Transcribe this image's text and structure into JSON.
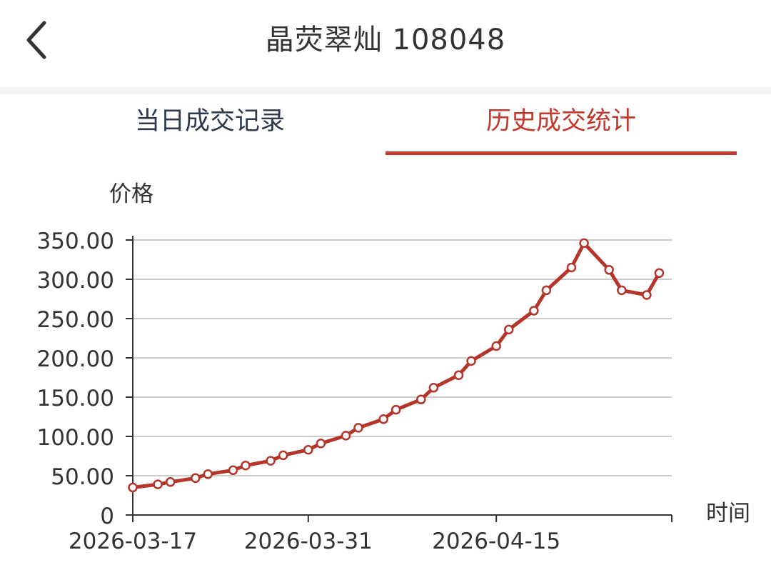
{
  "header": {
    "title": "晶荧翠灿 108048"
  },
  "tabs": [
    {
      "label": "当日成交记录",
      "active": false
    },
    {
      "label": "历史成交统计",
      "active": true
    }
  ],
  "colors": {
    "accent": "#c2392d",
    "line": "#b5352b",
    "grid": "#cccccc",
    "text": "#333333",
    "inactive_tab": "#2c3a4b"
  },
  "icons": {
    "back": "chevron-left-icon"
  },
  "chart_data": {
    "type": "line",
    "ylabel": "价格",
    "xlabel": "时间",
    "ylim": [
      0,
      350
    ],
    "yticks": [
      0,
      50,
      100,
      150,
      200,
      250,
      300,
      350
    ],
    "ytick_labels": [
      "0",
      "50.00",
      "100.00",
      "150.00",
      "200.00",
      "250.00",
      "300.00",
      "350.00"
    ],
    "xlim": [
      "2026-03-17",
      "2026-04-29"
    ],
    "xticks": [
      "2026-03-17",
      "2026-03-31",
      "2026-04-15"
    ],
    "grid": true,
    "series": [
      {
        "x": [
          "2026-03-17",
          "2026-03-19",
          "2026-03-20",
          "2026-03-22",
          "2026-03-23",
          "2026-03-25",
          "2026-03-26",
          "2026-03-28",
          "2026-03-29",
          "2026-03-31",
          "2026-04-01",
          "2026-04-03",
          "2026-04-04",
          "2026-04-06",
          "2026-04-07",
          "2026-04-09",
          "2026-04-10",
          "2026-04-12",
          "2026-04-13",
          "2026-04-15",
          "2026-04-16",
          "2026-04-18",
          "2026-04-19",
          "2026-04-21",
          "2026-04-22",
          "2026-04-24",
          "2026-04-25",
          "2026-04-27",
          "2026-04-28"
        ],
        "values": [
          35,
          39,
          42,
          47,
          52,
          57,
          63,
          69,
          76,
          83,
          91,
          101,
          111,
          122,
          134,
          147,
          162,
          178,
          196,
          215,
          236,
          260,
          286,
          315,
          346,
          312,
          286,
          280,
          308
        ]
      }
    ]
  }
}
